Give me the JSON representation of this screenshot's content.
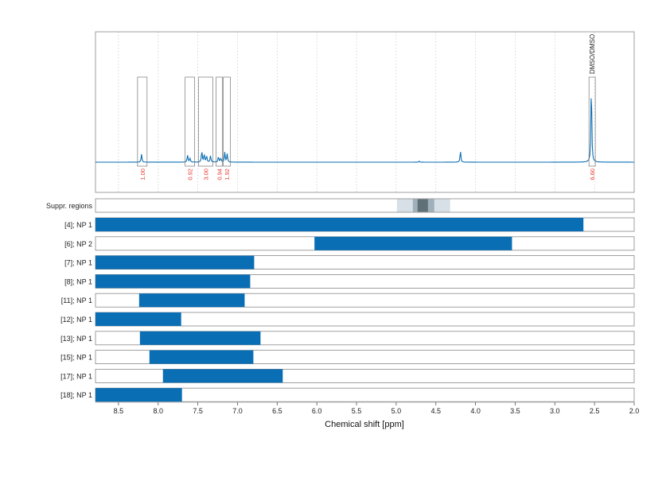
{
  "colors": {
    "spectrum": "#0a6eb4",
    "bar": "#0a6eb4",
    "integral_label": "#e6372b",
    "frame": "#888888",
    "grid": "#cccccc",
    "suppr_light": "#d6e0e6",
    "suppr_mid": "#9fb0ba",
    "suppr_dark": "#5f7077"
  },
  "chart_data": {
    "type": "spectrum",
    "xlabel": "Chemical shift [ppm]",
    "xlim": [
      8.79,
      2.0
    ],
    "x_reversed": true,
    "x_ticks": [
      8.5,
      8.0,
      7.5,
      7.0,
      6.5,
      6.0,
      5.5,
      5.0,
      4.5,
      4.0,
      3.5,
      3.0,
      2.5,
      2.0
    ],
    "x_tick_labels": [
      "8.5",
      "8.0",
      "7.5",
      "7.0",
      "6.5",
      "6.0",
      "5.5",
      "5.0",
      "4.5",
      "4.0",
      "3.5",
      "3.0",
      "2.5",
      "2.0"
    ],
    "grid": true,
    "peaks": [
      {
        "ppm": 8.21,
        "height": 0.1
      },
      {
        "ppm": 7.63,
        "height": 0.09
      },
      {
        "ppm": 7.6,
        "height": 0.05
      },
      {
        "ppm": 7.45,
        "height": 0.14
      },
      {
        "ppm": 7.42,
        "height": 0.1
      },
      {
        "ppm": 7.39,
        "height": 0.08
      },
      {
        "ppm": 7.34,
        "height": 0.08
      },
      {
        "ppm": 7.24,
        "height": 0.07
      },
      {
        "ppm": 7.21,
        "height": 0.05
      },
      {
        "ppm": 7.16,
        "height": 0.12
      },
      {
        "ppm": 7.13,
        "height": 0.1
      },
      {
        "ppm": 4.71,
        "height": 0.012
      },
      {
        "ppm": 4.19,
        "height": 0.14
      },
      {
        "ppm": 2.54,
        "height": 1.0
      }
    ],
    "integrals": [
      {
        "from": 8.26,
        "to": 8.14,
        "value": "1.00"
      },
      {
        "from": 7.66,
        "to": 7.54,
        "value": "0.92"
      },
      {
        "from": 7.49,
        "to": 7.31,
        "value": "3.00"
      },
      {
        "from": 7.27,
        "to": 7.19,
        "value": "0.94"
      },
      {
        "from": 7.18,
        "to": 7.09,
        "value": "1.92"
      },
      {
        "from": 2.57,
        "to": 2.49,
        "value": "6.60",
        "annotation": "DMSO/DMSO"
      }
    ],
    "suppressed_regions": {
      "label": "Suppr. regions",
      "light": [
        4.99,
        4.32
      ],
      "mid": [
        4.79,
        4.52
      ],
      "dark": [
        4.73,
        4.6
      ]
    },
    "rows": [
      {
        "label": "[4]; NP 1",
        "from": 8.79,
        "to": 2.64
      },
      {
        "label": "[6]; NP 2",
        "from": 6.03,
        "to": 3.54
      },
      {
        "label": "[7]; NP 1",
        "from": 8.79,
        "to": 6.79
      },
      {
        "label": "[8]; NP 1",
        "from": 8.79,
        "to": 6.84
      },
      {
        "label": "[11]; NP 1",
        "from": 8.24,
        "to": 6.91
      },
      {
        "label": "[12]; NP 1",
        "from": 8.79,
        "to": 7.71
      },
      {
        "label": "[13]; NP 1",
        "from": 8.23,
        "to": 6.71
      },
      {
        "label": "[15]; NP 1",
        "from": 8.11,
        "to": 6.8
      },
      {
        "label": "[17]; NP 1",
        "from": 7.94,
        "to": 6.43
      },
      {
        "label": "[18]; NP 1",
        "from": 8.79,
        "to": 7.7
      }
    ]
  }
}
